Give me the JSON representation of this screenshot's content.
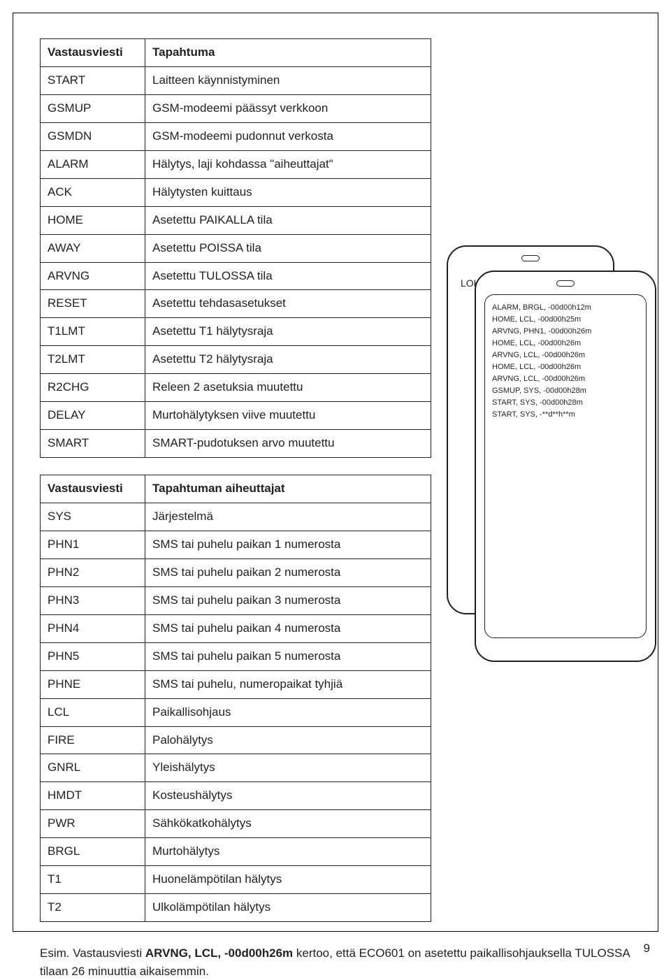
{
  "table1": {
    "head_left": "Vastausviesti",
    "head_right": "Tapahtuma",
    "rows": [
      [
        "START",
        "Laitteen käynnistyminen"
      ],
      [
        "GSMUP",
        "GSM-modeemi päässyt verkkoon"
      ],
      [
        "GSMDN",
        "GSM-modeemi pudonnut verkosta"
      ],
      [
        "ALARM",
        "Hälytys, laji kohdassa \"aiheuttajat\""
      ],
      [
        "ACK",
        "Hälytysten kuittaus"
      ],
      [
        "HOME",
        "Asetettu PAIKALLA tila"
      ],
      [
        "AWAY",
        "Asetettu POISSA tila"
      ],
      [
        "ARVNG",
        "Asetettu TULOSSA tila"
      ],
      [
        "RESET",
        "Asetettu tehdasasetukset"
      ],
      [
        "T1LMT",
        "Asetettu T1 hälytysraja"
      ],
      [
        "T2LMT",
        "Asetettu T2 hälytysraja"
      ],
      [
        "R2CHG",
        "Releen 2 asetuksia muutettu"
      ],
      [
        "DELAY",
        "Murtohälytyksen viive muutettu"
      ],
      [
        "SMART",
        "SMART-pudotuksen arvo muutettu"
      ]
    ]
  },
  "table2": {
    "head_left": "Vastausviesti",
    "head_right": "Tapahtuman aiheuttajat",
    "rows": [
      [
        "SYS",
        "Järjestelmä"
      ],
      [
        "PHN1",
        "SMS tai puhelu paikan 1 numerosta"
      ],
      [
        "PHN2",
        "SMS tai puhelu paikan 2 numerosta"
      ],
      [
        "PHN3",
        "SMS tai puhelu paikan 3 numerosta"
      ],
      [
        "PHN4",
        "SMS tai puhelu paikan 4 numerosta"
      ],
      [
        "PHN5",
        "SMS tai puhelu paikan 5 numerosta"
      ],
      [
        "PHNE",
        "SMS tai puhelu, numeropaikat tyhjiä"
      ],
      [
        "LCL",
        "Paikallisohjaus"
      ],
      [
        "FIRE",
        "Palohälytys"
      ],
      [
        "GNRL",
        "Yleishälytys"
      ],
      [
        "HMDT",
        "Kosteushälytys"
      ],
      [
        "PWR",
        "Sähkökatkohälytys"
      ],
      [
        "BRGL",
        "Murtohälytys"
      ],
      [
        "T1",
        "Huonelämpötilan hälytys"
      ],
      [
        "T2",
        "Ulkolämpötilan hälytys"
      ]
    ]
  },
  "device_back_label": "LOKI",
  "screen_lines": [
    "ALARM, BRGL, -00d00h12m",
    "HOME, LCL, -00d00h25m",
    "ARVNG, PHN1, -00d00h26m",
    "HOME, LCL, -00d00h26m",
    "ARVNG, LCL, -00d00h26m",
    "HOME, LCL, -00d00h26m",
    "ARVNG, LCL, -00d00h26m",
    "GSMUP, SYS, -00d00h28m",
    "START, SYS, -00d00h28m",
    "START, SYS, -**d**h**m"
  ],
  "footnote_prefix": "Esim. Vastausviesti ",
  "footnote_bold": "ARVNG, LCL, -00d00h26m",
  "footnote_suffix": " kertoo, että ECO601 on asetettu paikallisohjauksella TULOSSA tilaan 26 minuuttia aikaisemmin.",
  "page_number": "9"
}
